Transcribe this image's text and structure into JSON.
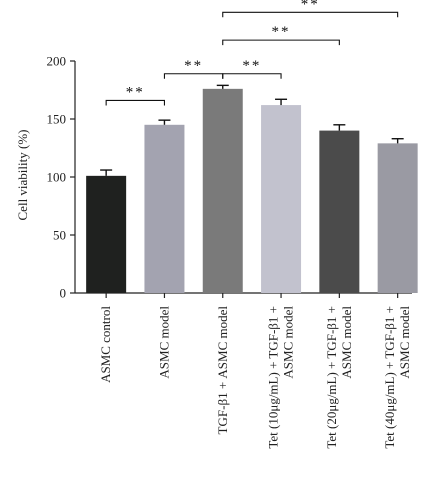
{
  "chart_data": {
    "type": "bar",
    "ylabel": "Cell viability (%)",
    "ylim": [
      0,
      200
    ],
    "yticks": [
      "0",
      "50",
      "100",
      "150",
      "200"
    ],
    "grid": false,
    "categories": [
      [
        "ASMC control"
      ],
      [
        "ASMC model"
      ],
      [
        "TGF-β1 + ASMC model"
      ],
      [
        "Tet (10μg/mL) + TGF-β1 +",
        "ASMC model"
      ],
      [
        "Tet (20μg/mL) + TGF-β1 +",
        "ASMC model"
      ],
      [
        "Tet (40μg/mL) + TGF-β1 +",
        "ASMC model"
      ]
    ],
    "values": [
      101,
      145,
      176,
      162,
      140,
      129
    ],
    "errors": [
      5,
      4,
      3,
      5,
      5,
      4
    ],
    "colors": [
      "#1f211f",
      "#a3a3b0",
      "#7a7a7a",
      "#c2c2ce",
      "#4b4b4b",
      "#9a9aa3"
    ],
    "significance": [
      {
        "from": 0,
        "to": 1,
        "level": 166,
        "label": "**"
      },
      {
        "from": 1,
        "to": 2,
        "level": 189,
        "label": "**"
      },
      {
        "from": 2,
        "to": 3,
        "level": 189,
        "label": "**"
      },
      {
        "from": 2,
        "to": 4,
        "level": 218,
        "label": "**"
      },
      {
        "from": 2,
        "to": 5,
        "level": 242,
        "label": "**"
      }
    ]
  }
}
